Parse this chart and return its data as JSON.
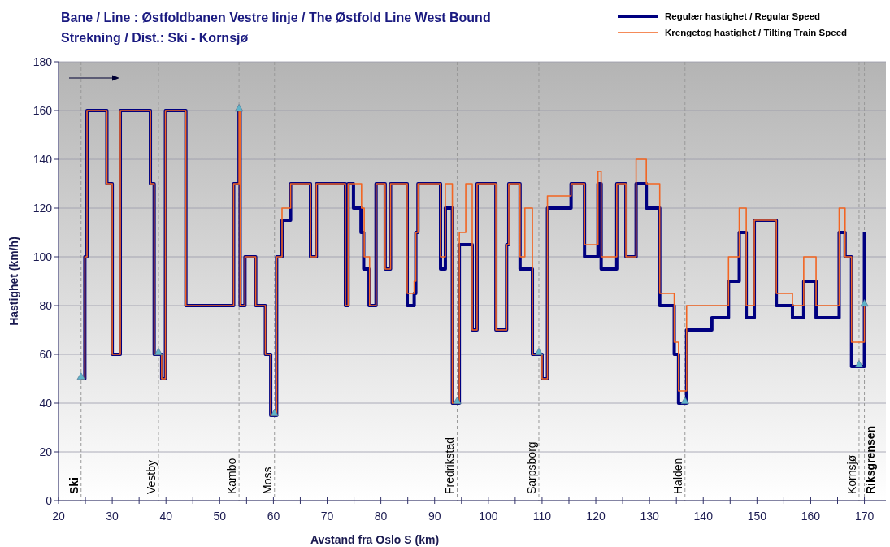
{
  "chart_data": {
    "type": "step",
    "title": "Bane / Line : Østfoldbanen  Vestre linje / The Østfold Line West Bound",
    "subtitle": "Strekning / Dist.: Ski - Kornsjø",
    "xlabel": "Avstand fra Oslo S (km)",
    "ylabel": "Hastighet (km/h)",
    "xlim": [
      20,
      174
    ],
    "ylim": [
      0,
      180
    ],
    "xticks": [
      20,
      {
        "value": 25,
        "label": null
      },
      30,
      {
        "value": 35,
        "label": null
      },
      40,
      {
        "value": 45,
        "label": null
      },
      50,
      {
        "value": 55,
        "label": null
      },
      60,
      {
        "value": 65,
        "label": null
      },
      70,
      {
        "value": 75,
        "label": null
      },
      80,
      {
        "value": 85,
        "label": null
      },
      90,
      {
        "value": 95,
        "label": null
      },
      100,
      {
        "value": 105,
        "label": null
      },
      110,
      {
        "value": 115,
        "label": null
      },
      120,
      {
        "value": 125,
        "label": null
      },
      130,
      {
        "value": 135,
        "label": null
      },
      140,
      {
        "value": 145,
        "label": null
      },
      150,
      {
        "value": 155,
        "label": null
      },
      160,
      {
        "value": 165,
        "label": null
      },
      170
    ],
    "yticks": [
      0,
      20,
      40,
      60,
      80,
      100,
      120,
      140,
      160,
      180
    ],
    "grid": "y",
    "legend": "top right",
    "series": [
      {
        "name": "Regulær hastighet / Regular Speed",
        "type": "step",
        "color": "#000080",
        "x": [
          24.2,
          24.9,
          25.3,
          29.0,
          30.0,
          31.5,
          37.1,
          37.8,
          39.2,
          39.9,
          43.7,
          52.6,
          53.6,
          53.8,
          54.7,
          56.7,
          58.5,
          59.5,
          60.6,
          61.6,
          63.2,
          66.9,
          68.0,
          73.4,
          73.9,
          74.9,
          76.3,
          76.8,
          77.8,
          79.1,
          80.8,
          81.8,
          84.9,
          86.2,
          86.5,
          86.9,
          91.1,
          92.0,
          93.3,
          94.6,
          97.0,
          97.9,
          101.4,
          103.4,
          103.8,
          105.9,
          108.2,
          110.0,
          111.0,
          115.4,
          117.9,
          120.4,
          121.0,
          123.9,
          125.6,
          127.5,
          129.4,
          131.9,
          134.6,
          135.4,
          136.9,
          141.6,
          144.7,
          146.7,
          148.0,
          149.5,
          153.6,
          156.6,
          158.7,
          161.0,
          165.3,
          166.4,
          167.6,
          170.0
        ],
        "values": [
          50,
          100,
          160,
          130,
          60,
          160,
          130,
          60,
          50,
          160,
          80,
          130,
          160,
          80,
          100,
          80,
          60,
          35,
          100,
          115,
          130,
          100,
          130,
          80,
          130,
          120,
          110,
          95,
          80,
          130,
          95,
          130,
          80,
          85,
          110,
          130,
          95,
          120,
          40,
          105,
          70,
          130,
          70,
          105,
          130,
          95,
          60,
          50,
          120,
          130,
          100,
          130,
          95,
          130,
          100,
          130,
          120,
          80,
          60,
          40,
          70,
          75,
          90,
          110,
          75,
          115,
          80,
          75,
          90,
          75,
          110,
          100,
          55,
          110
        ]
      },
      {
        "name": "Krengetog hastighet / Tilting Train Speed",
        "type": "step",
        "color": "#f26522",
        "x": [
          24.2,
          24.9,
          25.3,
          29.0,
          30.0,
          31.5,
          37.1,
          37.8,
          39.2,
          39.9,
          43.7,
          52.6,
          53.6,
          53.8,
          54.7,
          56.7,
          58.5,
          59.5,
          60.6,
          61.6,
          63.2,
          66.9,
          68.0,
          73.4,
          73.9,
          76.4,
          76.9,
          77.9,
          79.1,
          80.8,
          81.8,
          84.9,
          86.2,
          86.5,
          86.9,
          91.1,
          92.0,
          93.3,
          94.6,
          95.8,
          97.0,
          97.9,
          101.4,
          103.4,
          103.8,
          105.9,
          106.8,
          108.2,
          110.0,
          111.0,
          115.4,
          117.9,
          120.4,
          121.0,
          123.9,
          125.6,
          127.5,
          129.4,
          131.9,
          134.6,
          135.4,
          136.9,
          144.7,
          146.7,
          148.0,
          149.5,
          153.6,
          156.6,
          158.7,
          161.0,
          165.3,
          166.4,
          167.6,
          170.0
        ],
        "values": [
          50,
          100,
          160,
          130,
          60,
          160,
          130,
          60,
          50,
          160,
          80,
          130,
          160,
          80,
          100,
          80,
          60,
          35,
          100,
          120,
          130,
          100,
          130,
          80,
          130,
          120,
          100,
          80,
          130,
          95,
          130,
          85,
          90,
          110,
          130,
          100,
          130,
          40,
          110,
          130,
          70,
          130,
          70,
          105,
          130,
          100,
          120,
          60,
          50,
          125,
          130,
          105,
          135,
          100,
          130,
          100,
          140,
          130,
          85,
          65,
          45,
          80,
          100,
          120,
          80,
          115,
          85,
          80,
          100,
          80,
          120,
          100,
          65,
          80
        ]
      },
      {
        "type": "scatter",
        "color": "#5fb3c8",
        "marker": "triangle",
        "x": [
          24.2,
          38.6,
          53.6,
          60.2,
          94.2,
          109.4,
          136.6,
          169.0,
          170.0
        ],
        "values": [
          50,
          60,
          160,
          35,
          40,
          60,
          40,
          55,
          80
        ]
      }
    ],
    "ref_lines": [
      {
        "axis": "x",
        "value": 24.2,
        "label": "Ski",
        "color": "#999999",
        "line_style": "dashed"
      },
      {
        "axis": "x",
        "value": 38.6,
        "label": "Vestby",
        "color": "#999999",
        "line_style": "dashed"
      },
      {
        "axis": "x",
        "value": 53.6,
        "label": "Kambo",
        "color": "#999999",
        "line_style": "dashed"
      },
      {
        "axis": "x",
        "value": 60.2,
        "label": "Moss",
        "color": "#999999",
        "line_style": "dashed"
      },
      {
        "axis": "x",
        "value": 94.2,
        "label": "Fredrikstad",
        "color": "#999999",
        "line_style": "dashed"
      },
      {
        "axis": "x",
        "value": 109.4,
        "label": "Sarpsborg",
        "color": "#999999",
        "line_style": "dashed"
      },
      {
        "axis": "x",
        "value": 136.6,
        "label": "Halden",
        "color": "#999999",
        "line_style": "dashed"
      },
      {
        "axis": "x",
        "value": 169.0,
        "label": "Kornsjø",
        "color": "#999999",
        "line_style": "dashed"
      },
      {
        "axis": "x",
        "value": 170.0,
        "label": "Riksgrensen",
        "color": "#999999",
        "line_style": "dashed"
      }
    ]
  }
}
